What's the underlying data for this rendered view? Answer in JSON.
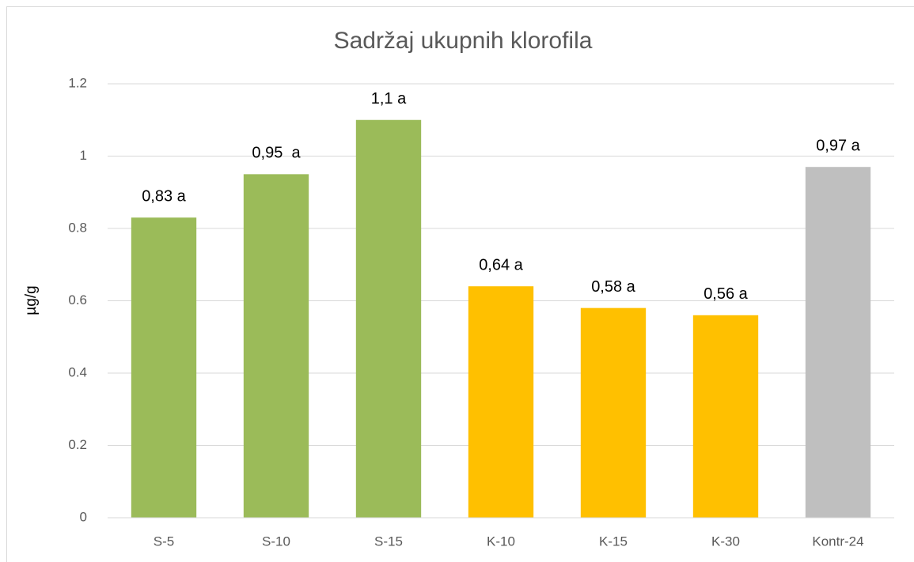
{
  "chart_data": {
    "type": "bar",
    "title": "Sadržaj ukupnih klorofila",
    "y_label": "µg/g",
    "categories": [
      "S-5",
      "S-10",
      "S-15",
      "K-10",
      "K-15",
      "K-30",
      "Kontr-24"
    ],
    "values": [
      0.83,
      0.95,
      1.1,
      0.64,
      0.58,
      0.56,
      0.97
    ],
    "value_labels": [
      "0,83 a",
      "0,95  a",
      "1,1 a",
      "0,64 a",
      "0,58 a",
      "0,56 a",
      "0,97 a"
    ],
    "colors": [
      "#9bbb59",
      "#9bbb59",
      "#9bbb59",
      "#ffc000",
      "#ffc000",
      "#ffc000",
      "#bfbfbf"
    ],
    "ylim": [
      0,
      1.2
    ],
    "yticks": [
      0,
      0.2,
      0.4,
      0.6,
      0.8,
      1,
      1.2
    ],
    "grid": true
  }
}
